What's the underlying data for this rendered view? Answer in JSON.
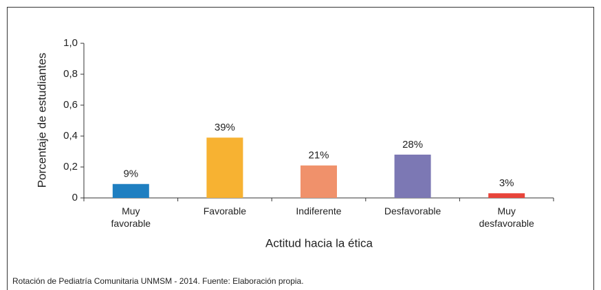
{
  "chart_data": {
    "type": "bar",
    "caption": "Rotación de Pediatría Comunitaria UNMSM - 2014. Fuente: Elaboración propia.",
    "xlabel": "Actitud hacia la ética",
    "ylabel": "Porcentaje de estudiantes",
    "categories": [
      "Muy favorable",
      "Favorable",
      "Indiferente",
      "Desfavorable",
      "Muy desfavorable"
    ],
    "values": [
      0.09,
      0.39,
      0.21,
      0.28,
      0.03
    ],
    "value_labels": [
      "9%",
      "39%",
      "21%",
      "28%",
      "3%"
    ],
    "colors": [
      "#1f7fc1",
      "#f7b232",
      "#f0916b",
      "#7c78b4",
      "#e8443a"
    ],
    "ylim": [
      0,
      1
    ],
    "yticks": [
      0,
      {
        "value": 0.2,
        "label": "0,2"
      },
      {
        "value": 0.4,
        "label": "0,4"
      },
      {
        "value": 0.6,
        "label": "0,6"
      },
      {
        "value": 0.8,
        "label": "0,8"
      },
      {
        "value": 1,
        "label": "1,0"
      }
    ],
    "grid": false
  }
}
